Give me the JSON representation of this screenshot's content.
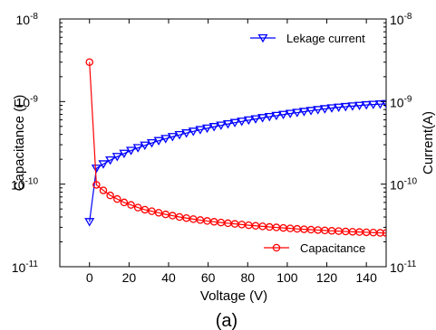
{
  "caption": "(a)",
  "chart_data": {
    "type": "line",
    "xlabel": "Voltage (V)",
    "ylabel_left": "Capacitance (F)",
    "ylabel_right": "Current(A)",
    "x_scale": "linear",
    "y_scale": "log",
    "xlim": [
      -15,
      150
    ],
    "ylim": [
      1e-11,
      1e-08
    ],
    "x_ticks": [
      0,
      20,
      40,
      60,
      80,
      100,
      120,
      140
    ],
    "x_tick_labels": [
      "0",
      "20",
      "40",
      "60",
      "80",
      "100",
      "120",
      "140"
    ],
    "y_ticks": [
      1e-11,
      1e-10,
      1e-09,
      1e-08
    ],
    "y_tick_labels_left": [
      {
        "base": "10",
        "exp": "-11"
      },
      {
        "base": "10",
        "exp": "-10"
      },
      {
        "base": "10",
        "exp": "-9"
      },
      {
        "base": "10",
        "exp": "-8"
      }
    ],
    "y_tick_labels_right": [
      {
        "base": "10",
        "exp": "-11"
      },
      {
        "base": "10",
        "exp": "-10"
      },
      {
        "base": "10",
        "exp": "-9"
      },
      {
        "base": "10",
        "exp": "-8"
      }
    ],
    "grid": false,
    "series": [
      {
        "name": "Lekage current",
        "axis": "right",
        "color": "#0000ff",
        "marker": "triangle-down",
        "legend_position": "top-right",
        "x": [
          0,
          3.5,
          7,
          10.5,
          14,
          17.5,
          21,
          24.5,
          28,
          31.5,
          35,
          38.5,
          42,
          45.5,
          49,
          52.5,
          56,
          59.5,
          63,
          66.5,
          70,
          73.5,
          77,
          80.5,
          84,
          87.5,
          91,
          94.5,
          98,
          101.5,
          105,
          108.5,
          112,
          115.5,
          119,
          122.5,
          126,
          129.5,
          133,
          136.5,
          140,
          143.5,
          147,
          150
        ],
        "y": [
          3.5e-11,
          1.55e-10,
          1.75e-10,
          1.95e-10,
          2.15e-10,
          2.35e-10,
          2.55e-10,
          2.75e-10,
          2.95e-10,
          3.15e-10,
          3.35e-10,
          3.55e-10,
          3.75e-10,
          3.95e-10,
          4.15e-10,
          4.35e-10,
          4.55e-10,
          4.75e-10,
          4.95e-10,
          5.15e-10,
          5.35e-10,
          5.55e-10,
          5.75e-10,
          5.95e-10,
          6.15e-10,
          6.35e-10,
          6.55e-10,
          6.75e-10,
          6.95e-10,
          7.15e-10,
          7.35e-10,
          7.55e-10,
          7.75e-10,
          7.95e-10,
          8.15e-10,
          8.35e-10,
          8.5e-10,
          8.65e-10,
          8.8e-10,
          8.95e-10,
          9.1e-10,
          9.2e-10,
          9.3e-10,
          9.4e-10
        ]
      },
      {
        "name": "Capacitance",
        "axis": "left",
        "color": "#ff0000",
        "marker": "circle",
        "legend_position": "bottom-right",
        "x": [
          0,
          3.5,
          7,
          10.5,
          14,
          17.5,
          21,
          24.5,
          28,
          31.5,
          35,
          38.5,
          42,
          45.5,
          49,
          52.5,
          56,
          59.5,
          63,
          66.5,
          70,
          73.5,
          77,
          80.5,
          84,
          87.5,
          91,
          94.5,
          98,
          101.5,
          105,
          108.5,
          112,
          115.5,
          119,
          122.5,
          126,
          129.5,
          133,
          136.5,
          140,
          143.5,
          147,
          150
        ],
        "y": [
          3e-09,
          9.8e-11,
          8.4e-11,
          7.3e-11,
          6.6e-11,
          6e-11,
          5.6e-11,
          5.2e-11,
          4.9e-11,
          4.7e-11,
          4.5e-11,
          4.3e-11,
          4.15e-11,
          4e-11,
          3.88e-11,
          3.77e-11,
          3.67e-11,
          3.58e-11,
          3.5e-11,
          3.43e-11,
          3.36e-11,
          3.3e-11,
          3.24e-11,
          3.18e-11,
          3.13e-11,
          3.08e-11,
          3.03e-11,
          2.99e-11,
          2.95e-11,
          2.91e-11,
          2.87e-11,
          2.84e-11,
          2.81e-11,
          2.78e-11,
          2.75e-11,
          2.72e-11,
          2.7e-11,
          2.67e-11,
          2.65e-11,
          2.63e-11,
          2.61e-11,
          2.59e-11,
          2.57e-11,
          2.56e-11
        ]
      }
    ]
  }
}
